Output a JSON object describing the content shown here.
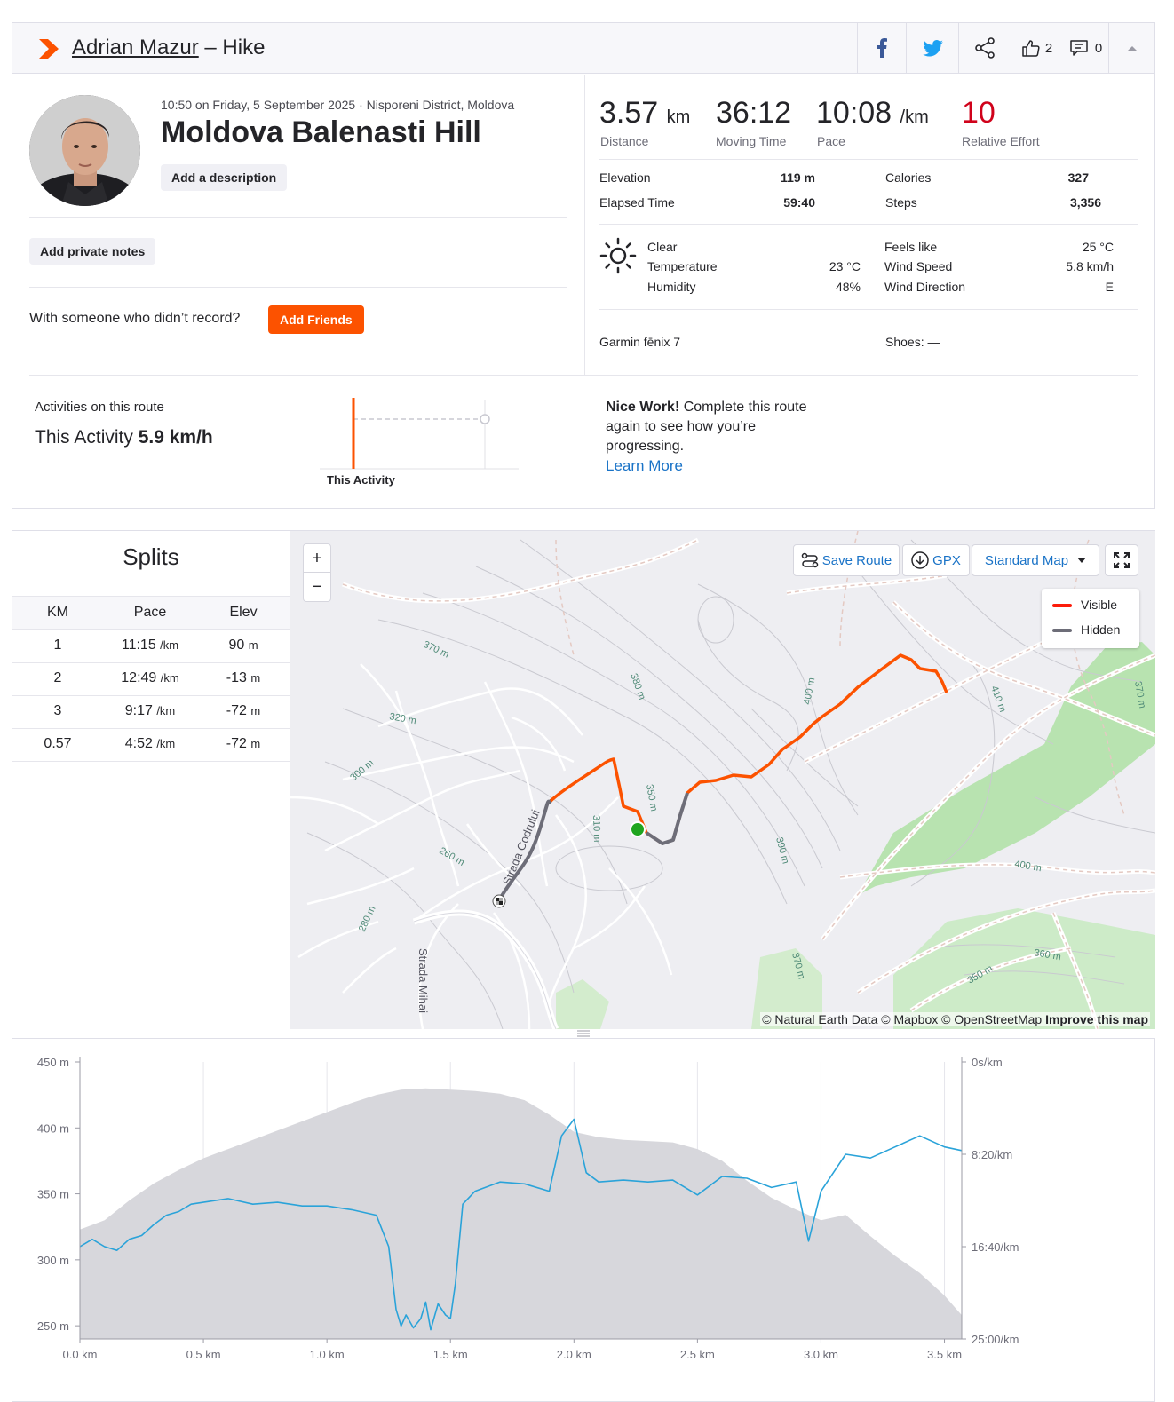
{
  "header": {
    "athlete": "Adrian Mazur",
    "separator": " – ",
    "activity_type": "Hike",
    "kudos_count": "2",
    "comments_count": "0"
  },
  "activity": {
    "meta": "10:50 on Friday, 5 September 2025 · Nisporeni District, Moldova",
    "title": "Moldova Balenasti Hill",
    "add_description": "Add a description",
    "add_private_notes": "Add private notes",
    "with_someone": "With someone who didn’t record?",
    "add_friends": "Add Friends"
  },
  "stats": {
    "distance": {
      "value": "3.57",
      "unit": "km",
      "label": "Distance"
    },
    "moving_time": {
      "value": "36:12",
      "label": "Moving Time"
    },
    "pace": {
      "value": "10:08",
      "unit": "/km",
      "label": "Pace"
    },
    "relative_effort": {
      "value": "10",
      "label": "Relative Effort"
    },
    "elevation": {
      "label": "Elevation",
      "value": "119 m"
    },
    "elapsed_time": {
      "label": "Elapsed Time",
      "value": "59:40"
    },
    "calories": {
      "label": "Calories",
      "value": "327"
    },
    "steps": {
      "label": "Steps",
      "value": "3,356"
    }
  },
  "weather": {
    "condition": "Clear",
    "temperature": {
      "label": "Temperature",
      "value": "23 °C"
    },
    "humidity": {
      "label": "Humidity",
      "value": "48%"
    },
    "feels_like": {
      "label": "Feels like",
      "value": "25 °C"
    },
    "wind_speed": {
      "label": "Wind Speed",
      "value": "5.8 km/h"
    },
    "wind_direction": {
      "label": "Wind Direction",
      "value": "E"
    },
    "icon": "sun-icon"
  },
  "gear": {
    "device": "Garmin fēnix 7",
    "shoes": "Shoes: —"
  },
  "route": {
    "label": "Activities on this route",
    "this_activity_prefix": "This Activity ",
    "this_activity_speed": "5.9 km/h",
    "mini_chart_label": "This Activity",
    "nice_bold": "Nice Work!",
    "nice_text": " Complete this route again to see how you’re progressing.",
    "learn_more": "Learn More"
  },
  "splits": {
    "title": "Splits",
    "headers": [
      "KM",
      "Pace",
      "Elev"
    ],
    "pace_unit": "/km",
    "elev_unit": "m",
    "rows": [
      {
        "km": "1",
        "pace": "11:15",
        "elev": "90"
      },
      {
        "km": "2",
        "pace": "12:49",
        "elev": "-13"
      },
      {
        "km": "3",
        "pace": "9:17",
        "elev": "-72"
      },
      {
        "km": "0.57",
        "pace": "4:52",
        "elev": "-72"
      }
    ]
  },
  "map": {
    "zoom_in": "+",
    "zoom_out": "−",
    "save_route": "Save Route",
    "gpx": "GPX",
    "map_style": "Standard Map",
    "legend_visible": "Visible",
    "legend_hidden": "Hidden",
    "attribution_pre": "© Natural Earth Data © Mapbox © OpenStreetMap ",
    "attribution_bold": "Improve this map",
    "street_labels": [
      "Strada Codrului",
      "Strada Mihai"
    ],
    "contour_labels": [
      "370 m",
      "380 m",
      "320 m",
      "300 m",
      "400 m",
      "410 m",
      "350 m",
      "310 m",
      "260 m",
      "280 m",
      "390 m",
      "370 m",
      "400 m",
      "360 m",
      "350 m",
      "370 m"
    ],
    "colors": {
      "visible": "#fc5200",
      "hidden": "#6d6d78",
      "start": "#1fa51f"
    }
  },
  "chart_data": {
    "type": "area",
    "x_unit": "km",
    "x_ticks": [
      "0.0 km",
      "0.5 km",
      "1.0 km",
      "1.5 km",
      "2.0 km",
      "2.5 km",
      "3.0 km",
      "3.5 km"
    ],
    "xlim": [
      0,
      3.57
    ],
    "y_left_ticks": [
      "450 m",
      "400 m",
      "350 m",
      "300 m",
      "250 m"
    ],
    "ylim_left": [
      240,
      450
    ],
    "y_right_ticks": [
      "0s/km",
      "8:20/km",
      "16:40/km",
      "25:00/km"
    ],
    "ylim_right_sec_per_km": [
      0,
      1500
    ],
    "series": [
      {
        "name": "Elevation",
        "kind": "area",
        "color": "#d7d7dc",
        "x": [
          0,
          0.1,
          0.2,
          0.3,
          0.4,
          0.5,
          0.6,
          0.7,
          0.8,
          0.9,
          1.0,
          1.1,
          1.2,
          1.3,
          1.4,
          1.5,
          1.6,
          1.7,
          1.8,
          1.9,
          2.0,
          2.1,
          2.2,
          2.3,
          2.4,
          2.5,
          2.6,
          2.7,
          2.8,
          2.9,
          3.0,
          3.1,
          3.2,
          3.3,
          3.4,
          3.5,
          3.57
        ],
        "values": [
          323,
          330,
          345,
          358,
          368,
          377,
          384,
          391,
          398,
          405,
          412,
          419,
          425,
          429,
          430,
          429,
          428,
          426,
          421,
          410,
          397,
          393,
          391,
          390,
          389,
          384,
          375,
          360,
          347,
          338,
          330,
          334,
          318,
          303,
          290,
          273,
          258
        ]
      },
      {
        "name": "Pace",
        "kind": "line",
        "color": "#2aa3d9",
        "x": [
          0,
          0.05,
          0.1,
          0.15,
          0.2,
          0.25,
          0.3,
          0.35,
          0.4,
          0.45,
          0.5,
          0.6,
          0.7,
          0.8,
          0.9,
          1.0,
          1.1,
          1.2,
          1.25,
          1.28,
          1.3,
          1.32,
          1.35,
          1.38,
          1.4,
          1.42,
          1.45,
          1.48,
          1.5,
          1.52,
          1.55,
          1.6,
          1.7,
          1.8,
          1.9,
          1.95,
          2.0,
          2.05,
          2.1,
          2.2,
          2.3,
          2.4,
          2.5,
          2.6,
          2.7,
          2.8,
          2.9,
          2.95,
          3.0,
          3.05,
          3.1,
          3.2,
          3.3,
          3.4,
          3.5,
          3.57
        ],
        "values": [
          1000,
          960,
          1000,
          1020,
          960,
          940,
          880,
          830,
          810,
          770,
          760,
          740,
          770,
          760,
          780,
          780,
          800,
          830,
          1000,
          1340,
          1430,
          1370,
          1440,
          1390,
          1300,
          1450,
          1310,
          1370,
          1390,
          1200,
          770,
          700,
          650,
          660,
          700,
          400,
          310,
          600,
          650,
          640,
          650,
          640,
          720,
          620,
          630,
          680,
          650,
          970,
          700,
          600,
          500,
          520,
          460,
          400,
          460,
          480
        ]
      }
    ]
  }
}
